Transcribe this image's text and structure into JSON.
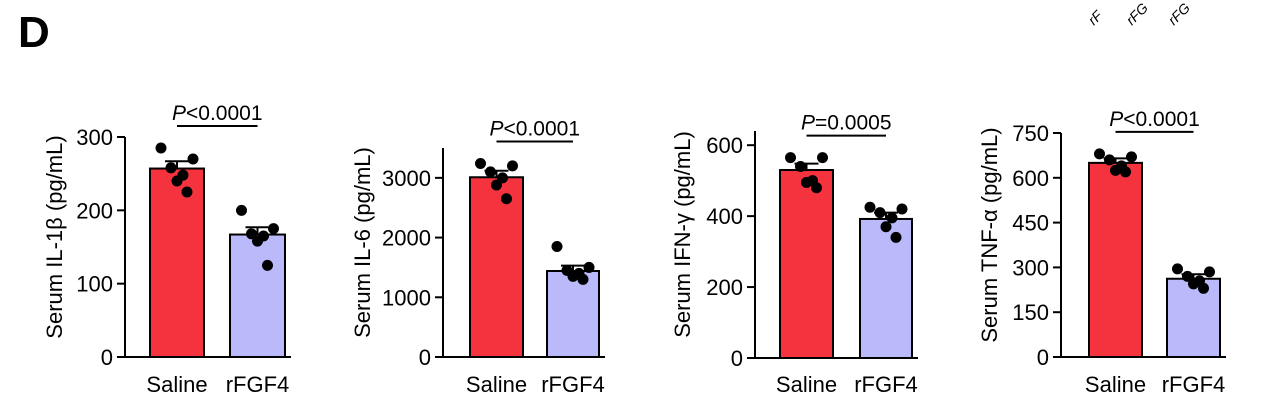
{
  "panel_label": "D",
  "corner_fragments": [
    "rF",
    "rFG",
    "rFG"
  ],
  "colors": {
    "saline": "#f5333f",
    "rfgf4": "#babafa",
    "axis": "#000000"
  },
  "chart_data": [
    {
      "type": "bar",
      "ylabel": "Serum IL-1β (pg/mL)",
      "ylim": [
        0,
        300
      ],
      "yticks": [
        0,
        100,
        200,
        300
      ],
      "categories": [
        "Saline",
        "rFGF4"
      ],
      "values": [
        257,
        167
      ],
      "sem": [
        10,
        10
      ],
      "points": [
        [
          285,
          270,
          258,
          248,
          240,
          225
        ],
        [
          200,
          175,
          168,
          165,
          158,
          125
        ]
      ],
      "p_label": "P<0.0001"
    },
    {
      "type": "bar",
      "ylabel": "Serum IL-6 (pg/mL)",
      "ylim": [
        0,
        3500
      ],
      "yticks": [
        0,
        1000,
        2000,
        3000
      ],
      "categories": [
        "Saline",
        "rFGF4"
      ],
      "values": [
        3010,
        1440
      ],
      "sem": [
        110,
        90
      ],
      "points": [
        [
          3240,
          3200,
          3100,
          3000,
          2880,
          2650
        ],
        [
          1850,
          1500,
          1450,
          1400,
          1350,
          1300
        ]
      ],
      "p_label": "P<0.0001"
    },
    {
      "type": "bar",
      "ylabel": "Serum IFN-γ (pg/mL)",
      "ylim": [
        0,
        640
      ],
      "yticks": [
        0,
        200,
        400,
        600
      ],
      "categories": [
        "Saline",
        "rFGF4"
      ],
      "values": [
        530,
        392
      ],
      "sem": [
        18,
        18
      ],
      "points": [
        [
          565,
          565,
          540,
          500,
          495,
          480
        ],
        [
          425,
          420,
          410,
          395,
          370,
          340
        ]
      ],
      "p_label": "P=0.0005"
    },
    {
      "type": "bar",
      "ylabel": "Serum TNF-α (pg/mL)",
      "ylim": [
        0,
        750
      ],
      "yticks": [
        0,
        150,
        300,
        450,
        600,
        750
      ],
      "categories": [
        "Saline",
        "rFGF4"
      ],
      "values": [
        650,
        262
      ],
      "sem": [
        15,
        15
      ],
      "points": [
        [
          680,
          670,
          660,
          640,
          625,
          620
        ],
        [
          295,
          285,
          270,
          255,
          245,
          230
        ]
      ],
      "p_label": "P<0.0001"
    }
  ]
}
